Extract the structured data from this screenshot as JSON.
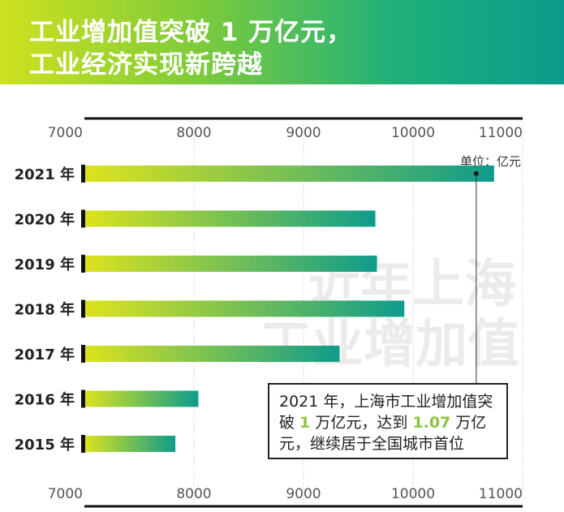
{
  "header": {
    "title_line1": "工业增加值突破 1 万亿元，",
    "title_line2": "工业经济实现新跨越"
  },
  "watermark": {
    "line1": "近年上海",
    "line2": "工业增加值"
  },
  "note": {
    "part1": "2021 年，上海市工业增加值突破 ",
    "highlight1": "1",
    "part2": " 万亿元，达到 ",
    "highlight2": "1.07",
    "part3": " 万亿元，继续居于全国城市首位"
  },
  "colors": {
    "bar_start": "#dde31d",
    "bar_end": "#0e9c8c",
    "highlight": "#8cc63f",
    "banner_start": "#cde21e",
    "banner_end": "#0a9b8c"
  },
  "chart_data": {
    "type": "bar",
    "orientation": "horizontal",
    "unit_label": "单位：亿元",
    "categories": [
      "2021 年",
      "2020 年",
      "2019 年",
      "2018 年",
      "2017 年",
      "2016 年",
      "2015 年"
    ],
    "values": [
      10740,
      9656,
      9670,
      9920,
      9330,
      8040,
      7830
    ],
    "xlim": [
      7000,
      11000
    ],
    "xticks": [
      "7000",
      "8000",
      "9000",
      "10000",
      "11000"
    ],
    "grid": true,
    "axis_labels_top_and_bottom": true
  }
}
